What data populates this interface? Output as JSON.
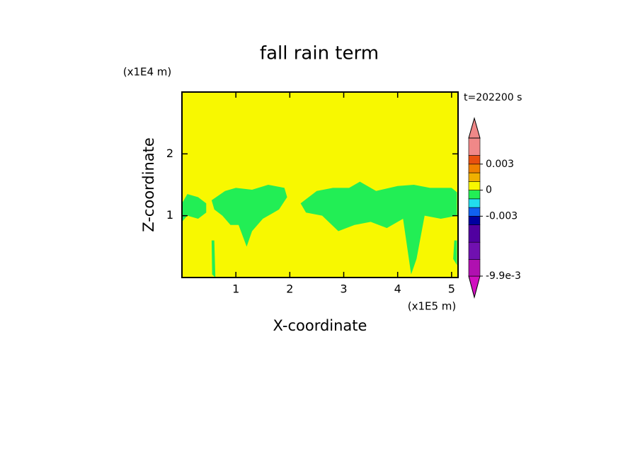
{
  "chart_data": {
    "type": "contour",
    "title": "fall rain term",
    "x_label": "X-coordinate",
    "y_label": "Z-coordinate",
    "x_unit": "(x1E5 m)",
    "y_unit": "(x1E4 m)",
    "time_label": "t=202200 s",
    "xlim": [
      0,
      5.12
    ],
    "ylim": [
      0,
      3
    ],
    "xticks": [
      1,
      2,
      3,
      4,
      5
    ],
    "yticks": [
      1,
      2
    ],
    "regions": [
      {
        "value": 0.0005,
        "x": [
          0,
          5.12,
          5.12,
          0
        ],
        "y": [
          0,
          0,
          3,
          3
        ]
      },
      {
        "value": -0.0005,
        "x": [
          0,
          0.1,
          0.3,
          0.45,
          0.45,
          0.3,
          0.1,
          0
        ],
        "y": [
          1.2,
          1.35,
          1.3,
          1.2,
          1.05,
          0.95,
          1.0,
          0.9
        ]
      },
      {
        "value": -0.0005,
        "x": [
          0.55,
          0.8,
          1.0,
          1.3,
          1.6,
          1.9,
          1.95,
          1.8,
          1.5,
          1.3,
          1.2,
          1.05,
          0.9,
          0.75,
          0.6
        ],
        "y": [
          1.25,
          1.4,
          1.45,
          1.42,
          1.5,
          1.45,
          1.3,
          1.1,
          0.95,
          0.75,
          0.5,
          0.85,
          0.85,
          1.0,
          1.1
        ]
      },
      {
        "value": -0.0005,
        "x": [
          2.2,
          2.5,
          2.8,
          3.1,
          3.3,
          3.6,
          4.0,
          4.3,
          4.6,
          5.0,
          5.1,
          5.1,
          4.8,
          4.5,
          4.35,
          4.25,
          4.1,
          3.8,
          3.5,
          3.2,
          2.9,
          2.6,
          2.3
        ],
        "y": [
          1.2,
          1.4,
          1.45,
          1.45,
          1.55,
          1.4,
          1.48,
          1.5,
          1.45,
          1.45,
          1.38,
          1.0,
          0.95,
          1.0,
          0.3,
          0.05,
          0.95,
          0.8,
          0.9,
          0.85,
          0.75,
          1.0,
          1.05
        ]
      },
      {
        "value": -0.0005,
        "x": [
          0.55,
          0.6,
          0.62,
          0.56
        ],
        "y": [
          0.6,
          0.6,
          0.0,
          0.05
        ]
      },
      {
        "value": -0.0005,
        "x": [
          5.05,
          5.1,
          5.1,
          5.03
        ],
        "y": [
          0.6,
          0.6,
          0.2,
          0.3
        ]
      }
    ],
    "colorbar": {
      "clim": [
        -0.0099,
        0.006
      ],
      "levels": [
        -0.0099,
        -0.008,
        -0.006,
        -0.004,
        -0.003,
        -0.002,
        -0.001,
        0,
        0.001,
        0.002,
        0.003,
        0.004,
        0.006
      ],
      "colors": [
        "#d010c0",
        "#b010b0",
        "#7010b0",
        "#5000a0",
        "#0000a0",
        "#1060f0",
        "#22ddee",
        "#22ee55",
        "#f8f800",
        "#f0b000",
        "#f08000",
        "#e85010",
        "#f08888",
        "#f08888"
      ],
      "ticks": [
        {
          "value": 0.003,
          "label": "0.003"
        },
        0,
        {
          "value": -0.003,
          "label": "-0.003"
        },
        {
          "value": -0.0099,
          "label": "-9.9e-3"
        }
      ]
    }
  }
}
